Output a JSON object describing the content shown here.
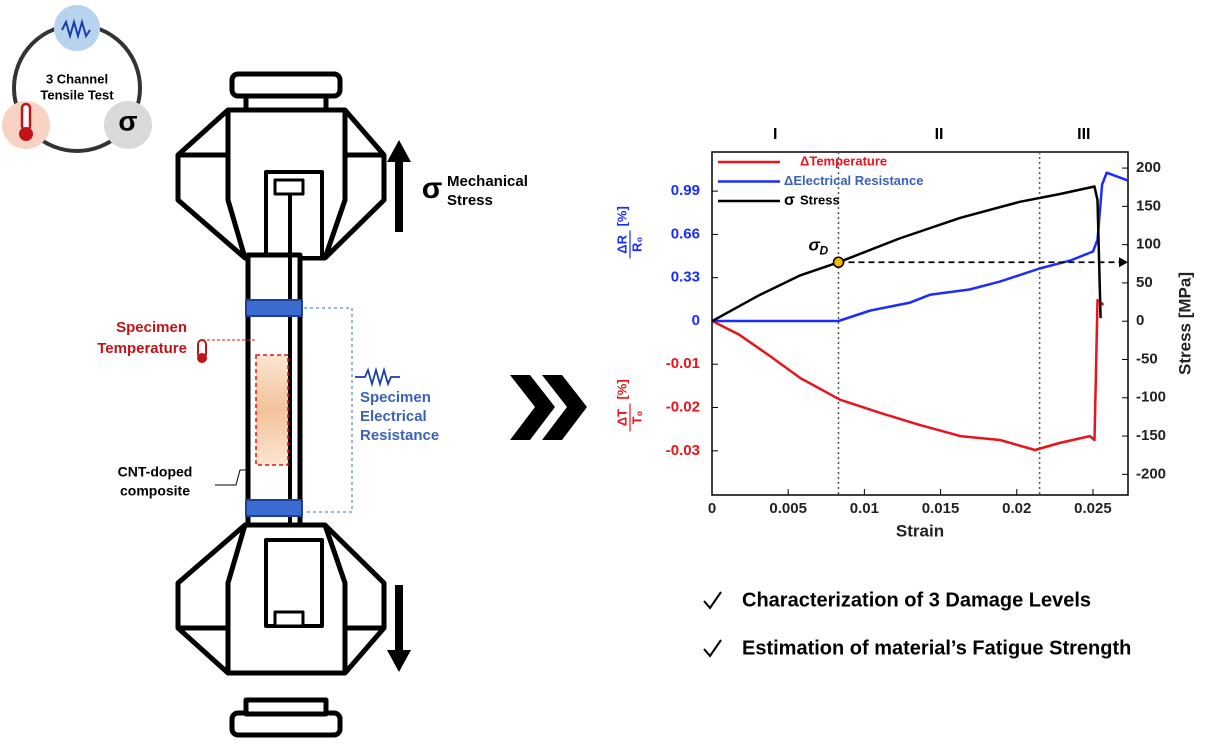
{
  "diagram": {
    "channel_label": [
      "3 Channel",
      "Tensile Test"
    ],
    "sigma_symbol": "σ",
    "stress_label": [
      "Mechanical",
      "Stress"
    ],
    "temperature_label": [
      "Specimen",
      "Temperature"
    ],
    "resistance_label": [
      "Specimen",
      "Electrical",
      "Resistance"
    ],
    "material_label": [
      "CNT-doped",
      "composite"
    ]
  },
  "chart_data": {
    "type": "line",
    "x_label": "Strain",
    "y_label": {
      "numerator": "ΔR",
      "denominator": "R₀",
      "unit": "[%]"
    },
    "y3_label": {
      "numerator": "ΔT",
      "denominator": "T₀",
      "unit": "[%]"
    },
    "y2_label": "Stress [MPa]",
    "xlim": [
      0,
      0.0273
    ],
    "xticks": [
      0,
      0.005,
      0.01,
      0.015,
      0.02,
      0.025
    ],
    "ylim": [
      -1.326,
      1.288
    ],
    "yticks": [
      0,
      0.33,
      0.66,
      0.99
    ],
    "y3lim": [
      -0.0402,
      0.039
    ],
    "y3ticks": [
      -0.01,
      -0.02,
      -0.03
    ],
    "y2lim": [
      -227,
      221
    ],
    "y2ticks": [
      -200,
      -150,
      -100,
      -50,
      0,
      50,
      100,
      150,
      200
    ],
    "regions": [
      "I",
      "II",
      "III"
    ],
    "region_bounds": [
      0.0083,
      0.0215
    ],
    "marker": {
      "symbol": "σ",
      "subscript": "D",
      "x": 0.0083,
      "y": 77,
      "color": "#f5b800"
    },
    "series": [
      {
        "name": "ΔTemperature",
        "color": "#e8141b",
        "axis": "y3",
        "x": [
          0,
          0.0018,
          0.0038,
          0.0058,
          0.0084,
          0.011,
          0.0136,
          0.0163,
          0.0189,
          0.0212,
          0.0228,
          0.0248,
          0.0251,
          0.0253,
          0.0257
        ],
        "values": [
          0,
          -0.0032,
          -0.0081,
          -0.0132,
          -0.0182,
          -0.0212,
          -0.024,
          -0.0266,
          -0.0275,
          -0.0298,
          -0.0282,
          -0.0266,
          -0.0275,
          0.0048,
          0.0037
        ]
      },
      {
        "name": "ΔElectrical Resistance",
        "color": "#1a2dff",
        "axis": "y",
        "x": [
          0,
          0.0083,
          0.0104,
          0.013,
          0.0143,
          0.0169,
          0.0189,
          0.0215,
          0.0235,
          0.025,
          0.0253,
          0.0256,
          0.0259,
          0.0273
        ],
        "values": [
          0,
          0,
          0.08,
          0.14,
          0.2,
          0.24,
          0.3,
          0.4,
          0.46,
          0.53,
          0.62,
          1.04,
          1.13,
          1.07
        ]
      },
      {
        "name": "Stress",
        "symbol": "σ",
        "color": "#000000",
        "axis": "y2",
        "x": [
          0,
          0.0031,
          0.0058,
          0.0083,
          0.0123,
          0.0163,
          0.0202,
          0.0228,
          0.0251,
          0.0253,
          0.0255
        ],
        "values": [
          0,
          34,
          60,
          77,
          108,
          135,
          156,
          166,
          176,
          158,
          4
        ]
      }
    ]
  },
  "bullets": [
    "Characterization of 3 Damage Levels",
    "Estimation of material’s Fatigue Strength"
  ]
}
